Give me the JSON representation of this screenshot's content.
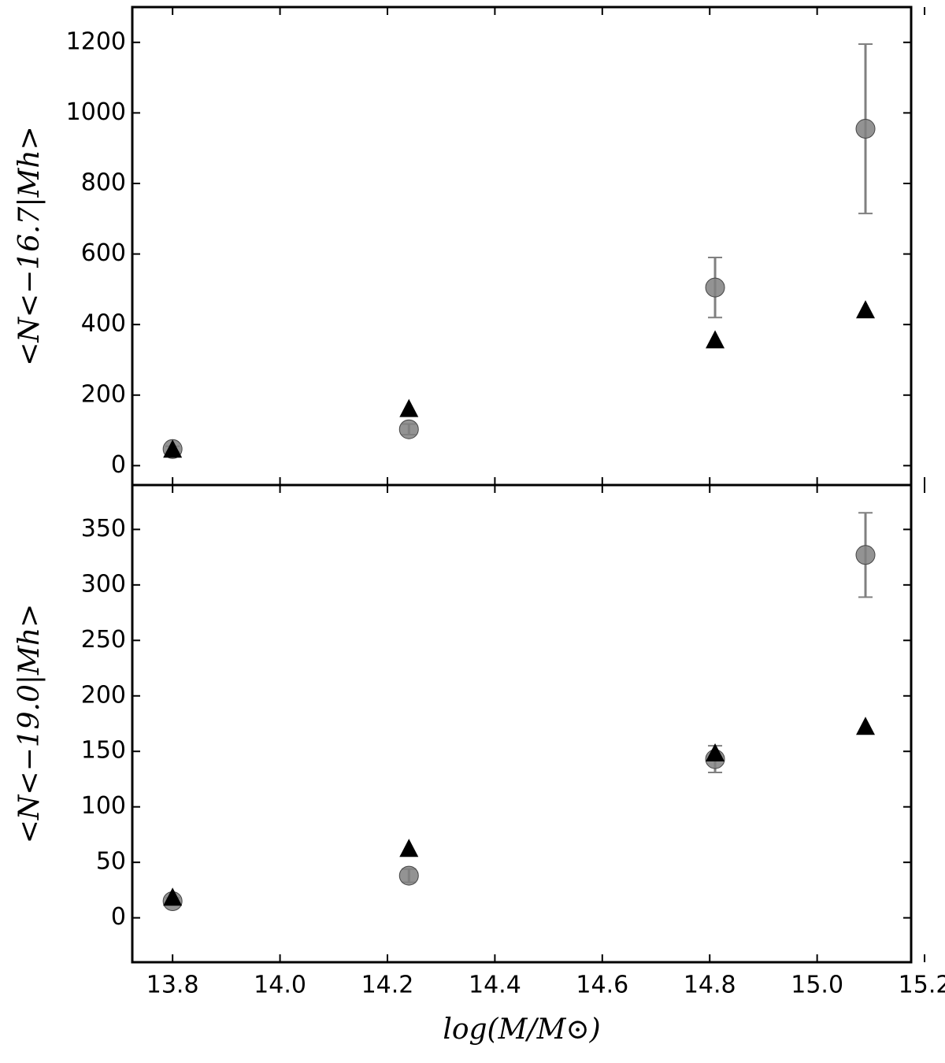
{
  "chart_data": [
    {
      "type": "scatter",
      "ylabel": "<N<−16.7|Mh>",
      "x": [
        13.8,
        14.24,
        14.81,
        15.09
      ],
      "xlim": [
        13.725,
        15.175
      ],
      "xticks": [
        13.8,
        {
          "value": 14,
          "label": "14.0"
        },
        14.2,
        14.4,
        14.6,
        14.8,
        {
          "value": 15,
          "label": "15.0"
        },
        15.2
      ],
      "ylim": [
        -55,
        1300
      ],
      "yticks": [
        0,
        200,
        400,
        600,
        800,
        1000,
        1200
      ],
      "series": [
        {
          "marker": "circle",
          "color": "#808080",
          "values": [
            47,
            103,
            505,
            955
          ],
          "errors": [
            8,
            15,
            85,
            240
          ]
        },
        {
          "marker": "triangle",
          "color": "#000000",
          "values": [
            45,
            160,
            355,
            440
          ]
        }
      ]
    },
    {
      "type": "scatter",
      "ylabel": "<N<−19.0|Mh>",
      "xlabel": "log(M/M⊙)",
      "x": [
        13.8,
        14.24,
        14.81,
        15.09
      ],
      "xlim": [
        13.725,
        15.175
      ],
      "xticks": [
        13.8,
        {
          "value": 14,
          "label": "14.0"
        },
        14.2,
        14.4,
        14.6,
        14.8,
        {
          "value": 15,
          "label": "15.0"
        },
        15.2
      ],
      "ylim": [
        -40,
        390
      ],
      "yticks": [
        0,
        50,
        100,
        150,
        200,
        250,
        300,
        350
      ],
      "series": [
        {
          "marker": "circle",
          "color": "#808080",
          "values": [
            15,
            38,
            143,
            327
          ],
          "errors": [
            3,
            6,
            12,
            38
          ]
        },
        {
          "marker": "triangle",
          "color": "#000000",
          "values": [
            18,
            62,
            148,
            172
          ]
        }
      ]
    }
  ]
}
